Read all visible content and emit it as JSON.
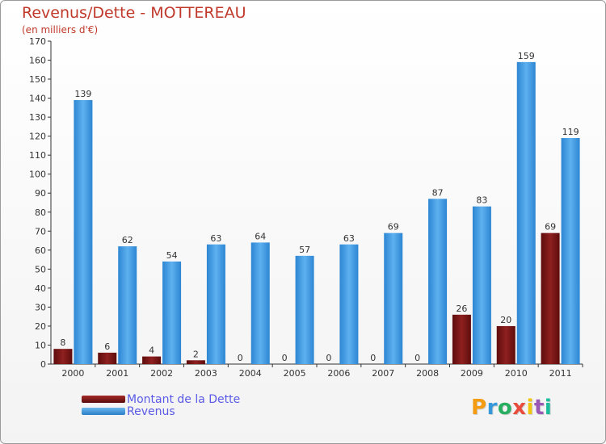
{
  "chart_data": {
    "type": "bar",
    "title": "Revenus/Dette - MOTTEREAU",
    "subtitle": "(en milliers d'€)",
    "categories": [
      "2000",
      "2001",
      "2002",
      "2003",
      "2004",
      "2005",
      "2006",
      "2007",
      "2008",
      "2009",
      "2010",
      "2011"
    ],
    "series": [
      {
        "name": "Montant de la Dette",
        "color": "#7a1414",
        "values": [
          8,
          6,
          4,
          2,
          0,
          0,
          0,
          0,
          0,
          26,
          20,
          69
        ]
      },
      {
        "name": "Revenus",
        "color": "#3f9be3",
        "values": [
          139,
          62,
          54,
          63,
          64,
          57,
          63,
          69,
          87,
          83,
          159,
          119
        ]
      }
    ],
    "ylim": [
      0,
      170
    ],
    "yticks": [
      "0",
      "10",
      "20",
      "30",
      "40",
      "50",
      "60",
      "70",
      "80",
      "90",
      "100",
      "110",
      "120",
      "130",
      "140",
      "150",
      "160",
      "170"
    ],
    "xlabel": "",
    "ylabel": "",
    "grid": false,
    "legend_position": "bottom-left"
  },
  "logo": {
    "letters": [
      "P",
      "r",
      "o",
      "x",
      "i",
      "t",
      "i"
    ],
    "colors": [
      "#f39c12",
      "#3498db",
      "#27ae60",
      "#e74c3c",
      "#f1c40f",
      "#9b59b6",
      "#1abc9c"
    ]
  }
}
